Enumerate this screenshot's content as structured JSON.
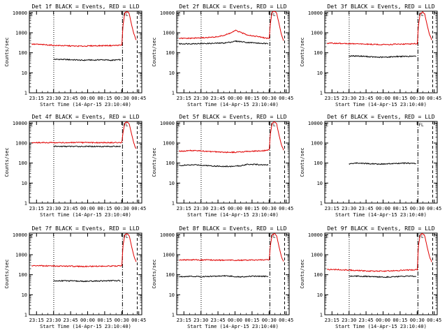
{
  "figure": {
    "xlabel": "Start Time (14-Apr-15 23:10:40)",
    "ylabel": "Counts/sec",
    "x_ticks": [
      "23:15",
      "23:30",
      "23:45",
      "00:00",
      "00:15",
      "00:30",
      "00:45"
    ],
    "y_ticks": [
      "1",
      "10",
      "100",
      "1000",
      "10000"
    ],
    "corner_marker": "E",
    "flare_marker": "FL"
  },
  "chart_data": [
    {
      "type": "line",
      "title": "Det 1f BLACK = Events, RED = LLD",
      "x_unit": "minutes after 23:10:40",
      "yscale": "log",
      "ylim": [
        1,
        12000
      ],
      "xlim": [
        -2,
        97
      ],
      "vlines": [
        {
          "x": 19.5,
          "style": "dotted"
        },
        {
          "x": 80,
          "style": "dash-dot"
        },
        {
          "x": 93,
          "style": "dashed"
        }
      ],
      "series": [
        {
          "name": "Events",
          "color": "#000000",
          "x": [
            19.3,
            25,
            30,
            35,
            40,
            45,
            50,
            55,
            60,
            65,
            70,
            75,
            78.5
          ],
          "values": [
            47,
            47,
            46,
            45,
            44,
            42,
            44,
            43,
            45,
            44,
            42,
            44,
            45
          ]
        },
        {
          "name": "LLD",
          "color": "#e00000",
          "x": [
            0,
            5,
            10,
            15,
            20,
            25,
            30,
            35,
            40,
            45,
            50,
            55,
            60,
            65,
            70,
            75,
            79.5,
            80.3,
            82,
            84,
            86,
            88,
            90,
            92
          ],
          "values": [
            270,
            265,
            255,
            245,
            235,
            230,
            225,
            220,
            215,
            215,
            220,
            225,
            225,
            230,
            230,
            235,
            240,
            2000,
            9500,
            11500,
            9000,
            2500,
            900,
            450
          ]
        }
      ]
    },
    {
      "type": "line",
      "title": "Det 2f BLACK = Events, RED = LLD",
      "x_unit": "minutes after 23:10:40",
      "yscale": "log",
      "ylim": [
        1,
        12000
      ],
      "xlim": [
        -2,
        97
      ],
      "vlines": [
        {
          "x": 19.5,
          "style": "dotted"
        },
        {
          "x": 80,
          "style": "dash-dot"
        },
        {
          "x": 93,
          "style": "dashed"
        }
      ],
      "series": [
        {
          "name": "Events",
          "color": "#000000",
          "x": [
            0,
            10,
            20,
            30,
            40,
            45,
            50,
            55,
            60,
            65,
            70,
            75,
            78.5
          ],
          "values": [
            280,
            285,
            290,
            295,
            310,
            340,
            380,
            360,
            330,
            320,
            300,
            290,
            280
          ]
        },
        {
          "name": "LLD",
          "color": "#e00000",
          "x": [
            0,
            10,
            20,
            30,
            35,
            40,
            45,
            50,
            55,
            60,
            65,
            70,
            75,
            79.5,
            80.3,
            82,
            84,
            86,
            88,
            90,
            92
          ],
          "values": [
            520,
            530,
            560,
            600,
            650,
            750,
            950,
            1300,
            1000,
            800,
            700,
            640,
            560,
            520,
            2500,
            11000,
            12000,
            9500,
            3000,
            900,
            400
          ]
        }
      ]
    },
    {
      "type": "line",
      "title": "Det 3f BLACK = Events, RED = LLD",
      "x_unit": "minutes after 23:10:40",
      "yscale": "log",
      "ylim": [
        1,
        12000
      ],
      "xlim": [
        -2,
        97
      ],
      "vlines": [
        {
          "x": 19.5,
          "style": "dotted"
        },
        {
          "x": 80,
          "style": "dash-dot"
        },
        {
          "x": 93,
          "style": "dashed"
        }
      ],
      "series": [
        {
          "name": "Events",
          "color": "#000000",
          "x": [
            19.3,
            25,
            30,
            35,
            40,
            45,
            50,
            55,
            60,
            65,
            70,
            75,
            78.5
          ],
          "values": [
            68,
            70,
            68,
            65,
            62,
            60,
            60,
            62,
            65,
            66,
            66,
            67,
            66
          ]
        },
        {
          "name": "LLD",
          "color": "#e00000",
          "x": [
            0,
            5,
            10,
            15,
            20,
            25,
            30,
            35,
            40,
            45,
            50,
            55,
            60,
            65,
            70,
            75,
            79.5,
            80.3,
            82,
            84,
            86,
            88,
            90,
            92
          ],
          "values": [
            300,
            300,
            295,
            290,
            285,
            280,
            275,
            270,
            265,
            260,
            258,
            262,
            268,
            272,
            275,
            280,
            285,
            2000,
            9000,
            11000,
            8500,
            2600,
            900,
            450
          ]
        }
      ]
    },
    {
      "type": "line",
      "title": "Det 4f BLACK = Events, RED = LLD",
      "x_unit": "minutes after 23:10:40",
      "yscale": "log",
      "ylim": [
        1,
        12000
      ],
      "xlim": [
        -2,
        97
      ],
      "vlines": [
        {
          "x": 19.5,
          "style": "dotted"
        },
        {
          "x": 80,
          "style": "dash-dot"
        },
        {
          "x": 93,
          "style": "dashed"
        }
      ],
      "series": [
        {
          "name": "Events",
          "color": "#000000",
          "x": [
            19.3,
            30,
            40,
            50,
            60,
            70,
            78.5
          ],
          "values": [
            680,
            680,
            680,
            680,
            680,
            680,
            680
          ]
        },
        {
          "name": "LLD",
          "color": "#e00000",
          "x": [
            0,
            10,
            20,
            30,
            40,
            50,
            60,
            70,
            79.5,
            80.3,
            82,
            84,
            86,
            88,
            90,
            92
          ],
          "values": [
            1050,
            1050,
            1050,
            1050,
            1050,
            1050,
            1050,
            1050,
            1060,
            3000,
            9500,
            11500,
            9000,
            2800,
            1000,
            500
          ]
        }
      ]
    },
    {
      "type": "line",
      "title": "Det 5f BLACK = Events, RED = LLD",
      "x_unit": "minutes after 23:10:40",
      "yscale": "log",
      "ylim": [
        1,
        12000
      ],
      "xlim": [
        -2,
        97
      ],
      "vlines": [
        {
          "x": 19.5,
          "style": "dotted"
        },
        {
          "x": 80,
          "style": "dash-dot"
        },
        {
          "x": 93,
          "style": "dashed"
        }
      ],
      "series": [
        {
          "name": "Events",
          "color": "#000000",
          "x": [
            0,
            5,
            10,
            15,
            20,
            25,
            30,
            35,
            40,
            45,
            50,
            55,
            60,
            65,
            70,
            75,
            78.5
          ],
          "values": [
            75,
            78,
            80,
            82,
            78,
            75,
            72,
            70,
            68,
            68,
            70,
            74,
            88,
            86,
            84,
            82,
            80
          ]
        },
        {
          "name": "LLD",
          "color": "#e00000",
          "x": [
            0,
            5,
            10,
            15,
            20,
            25,
            30,
            35,
            40,
            45,
            50,
            55,
            60,
            65,
            70,
            75,
            79.5,
            80.3,
            82,
            84,
            86,
            88,
            90,
            92
          ],
          "values": [
            390,
            400,
            420,
            420,
            400,
            380,
            370,
            360,
            350,
            345,
            350,
            360,
            380,
            390,
            400,
            420,
            450,
            2500,
            9500,
            11500,
            9000,
            2600,
            900,
            450
          ]
        }
      ]
    },
    {
      "type": "line",
      "title": "Det 6f BLACK = Events, RED = LLD",
      "x_unit": "minutes after 23:10:40",
      "yscale": "log",
      "ylim": [
        1,
        12000
      ],
      "xlim": [
        -2,
        97
      ],
      "vlines": [
        {
          "x": 80,
          "style": "dash-dot"
        },
        {
          "x": 93,
          "style": "dashed"
        }
      ],
      "series": [
        {
          "name": "Events",
          "color": "#000000",
          "x": [
            19.3,
            25,
            30,
            35,
            40,
            45,
            50,
            55,
            60,
            65,
            70,
            75,
            78.5
          ],
          "values": [
            90,
            100,
            98,
            95,
            92,
            90,
            90,
            92,
            95,
            97,
            98,
            97,
            95
          ]
        }
      ]
    },
    {
      "type": "line",
      "title": "Det 7f BLACK = Events, RED = LLD",
      "x_unit": "minutes after 23:10:40",
      "yscale": "log",
      "ylim": [
        1,
        12000
      ],
      "xlim": [
        -2,
        97
      ],
      "vlines": [
        {
          "x": 19.5,
          "style": "dotted"
        },
        {
          "x": 80,
          "style": "dash-dot"
        },
        {
          "x": 93,
          "style": "dashed"
        }
      ],
      "series": [
        {
          "name": "Events",
          "color": "#000000",
          "x": [
            19.3,
            25,
            30,
            35,
            40,
            45,
            50,
            55,
            60,
            65,
            70,
            75,
            78.5
          ],
          "values": [
            48,
            50,
            50,
            49,
            48,
            47,
            47,
            48,
            49,
            50,
            50,
            51,
            50
          ]
        },
        {
          "name": "LLD",
          "color": "#e00000",
          "x": [
            0,
            5,
            10,
            15,
            20,
            25,
            30,
            35,
            40,
            45,
            50,
            55,
            60,
            65,
            70,
            75,
            79.5,
            80.3,
            82,
            84,
            86,
            88,
            90,
            92
          ],
          "values": [
            285,
            280,
            278,
            275,
            272,
            270,
            268,
            265,
            262,
            260,
            262,
            265,
            268,
            270,
            272,
            275,
            278,
            2500,
            9500,
            11500,
            9000,
            2600,
            900,
            450
          ]
        }
      ]
    },
    {
      "type": "line",
      "title": "Det 8f BLACK = Events, RED = LLD",
      "x_unit": "minutes after 23:10:40",
      "yscale": "log",
      "ylim": [
        1,
        12000
      ],
      "xlim": [
        -2,
        97
      ],
      "vlines": [
        {
          "x": 19.5,
          "style": "dotted"
        },
        {
          "x": 80,
          "style": "dash-dot"
        },
        {
          "x": 93,
          "style": "dashed"
        }
      ],
      "series": [
        {
          "name": "Events",
          "color": "#000000",
          "x": [
            0,
            5,
            10,
            15,
            20,
            25,
            30,
            35,
            40,
            45,
            50,
            55,
            60,
            65,
            70,
            75,
            78.5
          ],
          "values": [
            80,
            82,
            84,
            82,
            80,
            82,
            84,
            86,
            88,
            85,
            80,
            78,
            82,
            84,
            84,
            83,
            82
          ]
        },
        {
          "name": "LLD",
          "color": "#e00000",
          "x": [
            0,
            5,
            10,
            15,
            20,
            25,
            30,
            35,
            40,
            45,
            50,
            55,
            60,
            65,
            70,
            75,
            79.5,
            80.3,
            82,
            84,
            86,
            88,
            90,
            92
          ],
          "values": [
            560,
            560,
            555,
            550,
            550,
            545,
            540,
            538,
            535,
            530,
            528,
            530,
            535,
            540,
            545,
            548,
            550,
            2500,
            9500,
            11500,
            9000,
            2600,
            900,
            450
          ]
        }
      ]
    },
    {
      "type": "line",
      "title": "Det 9f BLACK = Events, RED = LLD",
      "x_unit": "minutes after 23:10:40",
      "yscale": "log",
      "ylim": [
        1,
        12000
      ],
      "xlim": [
        -2,
        97
      ],
      "vlines": [
        {
          "x": 19.5,
          "style": "dotted"
        },
        {
          "x": 80,
          "style": "dash-dot"
        },
        {
          "x": 93,
          "style": "dashed"
        }
      ],
      "series": [
        {
          "name": "Events",
          "color": "#000000",
          "x": [
            19.3,
            25,
            30,
            35,
            40,
            45,
            50,
            55,
            60,
            65,
            70,
            75,
            78.5
          ],
          "values": [
            85,
            86,
            84,
            82,
            80,
            78,
            77,
            78,
            80,
            82,
            83,
            84,
            82
          ]
        },
        {
          "name": "LLD",
          "color": "#e00000",
          "x": [
            0,
            5,
            10,
            15,
            20,
            25,
            30,
            35,
            40,
            45,
            50,
            55,
            60,
            65,
            70,
            75,
            79.5,
            80.3,
            82,
            84,
            86,
            88,
            90,
            92
          ],
          "values": [
            180,
            185,
            180,
            175,
            170,
            165,
            160,
            155,
            152,
            150,
            152,
            155,
            160,
            165,
            170,
            175,
            180,
            2500,
            9500,
            11500,
            9000,
            2600,
            900,
            450
          ]
        }
      ]
    }
  ]
}
